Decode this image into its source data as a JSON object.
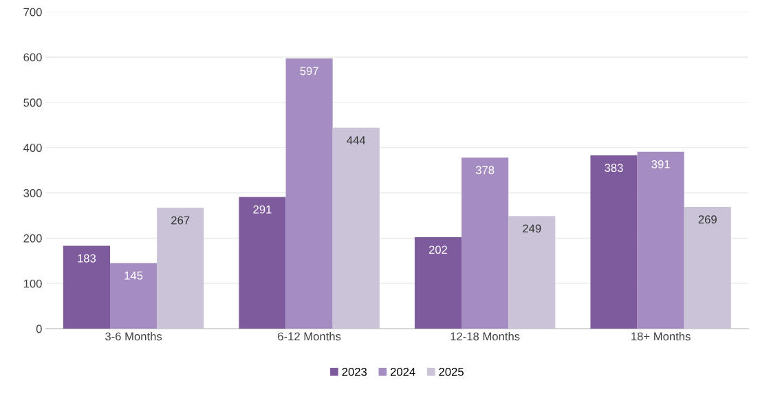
{
  "chart_data": {
    "type": "bar",
    "categories": [
      "3-6 Months",
      "6-12 Months",
      "12-18 Months",
      "18+ Months"
    ],
    "series": [
      {
        "name": "2023",
        "color": "#7e5b9c",
        "values": [
          183,
          291,
          202,
          383
        ]
      },
      {
        "name": "2024",
        "color": "#a58dc1",
        "values": [
          145,
          597,
          378,
          391
        ]
      },
      {
        "name": "2025",
        "color": "#cbc3d7",
        "values": [
          267,
          444,
          249,
          269
        ]
      }
    ],
    "ylim": [
      0,
      700
    ],
    "yticks": [
      0,
      100,
      200,
      300,
      400,
      500,
      600,
      700
    ],
    "grid": "y",
    "legend": "bottom",
    "data_labels": true
  }
}
